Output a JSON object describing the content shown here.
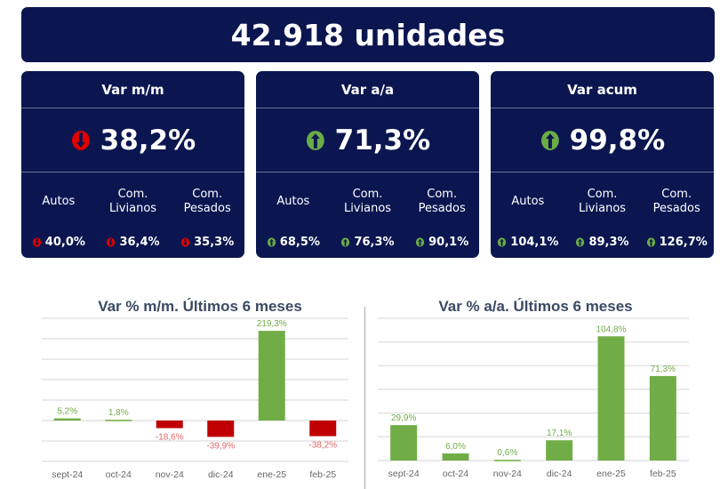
{
  "banner": {
    "title": "42.918 unidades"
  },
  "cards": [
    {
      "title": "Var m/m",
      "value": "38,2%",
      "direction": "down",
      "items": [
        {
          "label1": "Autos",
          "label2": "",
          "value": "40,0%",
          "direction": "down"
        },
        {
          "label1": "Com.",
          "label2": "Livianos",
          "value": "36,4%",
          "direction": "down"
        },
        {
          "label1": "Com.",
          "label2": "Pesados",
          "value": "35,3%",
          "direction": "down"
        }
      ]
    },
    {
      "title": "Var a/a",
      "value": "71,3%",
      "direction": "up",
      "items": [
        {
          "label1": "Autos",
          "label2": "",
          "value": "68,5%",
          "direction": "up"
        },
        {
          "label1": "Com.",
          "label2": "Livianos",
          "value": "76,3%",
          "direction": "up"
        },
        {
          "label1": "Com.",
          "label2": "Pesados",
          "value": "90,1%",
          "direction": "up"
        }
      ]
    },
    {
      "title": "Var acum",
      "value": "99,8%",
      "direction": "up",
      "items": [
        {
          "label1": "Autos",
          "label2": "",
          "value": "104,1%",
          "direction": "up"
        },
        {
          "label1": "Com.",
          "label2": "Livianos",
          "value": "89,3%",
          "direction": "up"
        },
        {
          "label1": "Com.",
          "label2": "Pesados",
          "value": "126,7%",
          "direction": "up"
        }
      ]
    }
  ],
  "colors": {
    "navy": "#0b1650",
    "up": "#6aac46",
    "down": "#e00000",
    "bar_up": "#70ad47",
    "bar_down": "#c00000",
    "label_down": "#e06666"
  },
  "chart_data": [
    {
      "type": "bar",
      "title": "Var % m/m. Últimos 6 meses",
      "categories": [
        "sept-24",
        "oct-24",
        "nov-24",
        "dic-24",
        "ene-25",
        "feb-25"
      ],
      "values": [
        5.2,
        1.8,
        -18.6,
        -39.9,
        219.3,
        -38.2
      ],
      "labels": [
        "5,2%",
        "1,8%",
        "-18,6%",
        "-39,9%",
        "219,3%",
        "-38,2%"
      ],
      "ylim": [
        -100,
        250
      ],
      "ystep": 50,
      "grid": true,
      "xlabel": "",
      "ylabel": ""
    },
    {
      "type": "bar",
      "title": "Var % a/a. Últimos 6 meses",
      "categories": [
        "sept-24",
        "oct-24",
        "nov-24",
        "dic-24",
        "ene-25",
        "feb-25"
      ],
      "values": [
        29.9,
        6.0,
        0.6,
        17.1,
        104.8,
        71.3
      ],
      "labels": [
        "29,9%",
        "6,0%",
        "0,6%",
        "17,1%",
        "104,8%",
        "71,3%"
      ],
      "ylim": [
        0,
        120
      ],
      "ystep": 20,
      "grid": true,
      "xlabel": "",
      "ylabel": ""
    }
  ]
}
